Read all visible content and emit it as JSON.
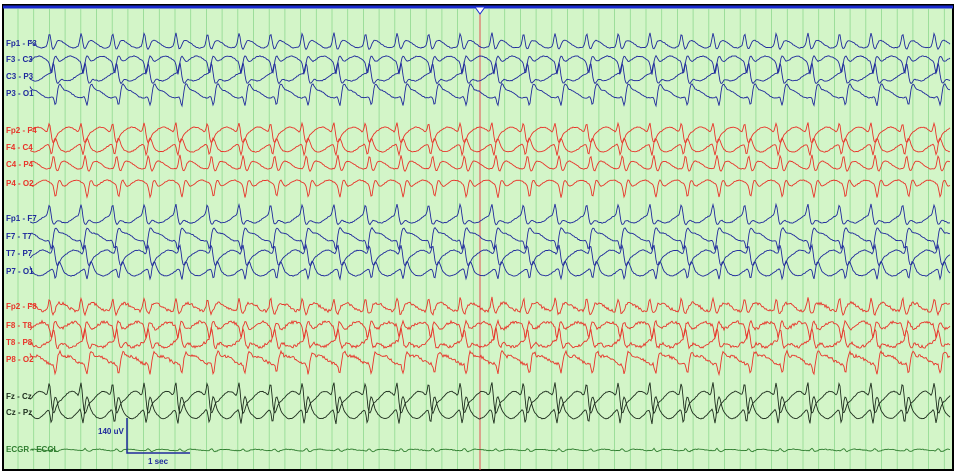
{
  "channels": [
    {
      "label": "Fp1 - F3",
      "color": "#1f2a9c"
    },
    {
      "label": "F3 - C3",
      "color": "#1f2a9c"
    },
    {
      "label": "C3 - P3",
      "color": "#1f2a9c"
    },
    {
      "label": "P3 - O1",
      "color": "#1f2a9c"
    },
    {
      "label": "Fp2 - F4",
      "color": "#e8352a"
    },
    {
      "label": "F4 - C4",
      "color": "#e8352a"
    },
    {
      "label": "C4 - P4",
      "color": "#e8352a"
    },
    {
      "label": "P4 - O2",
      "color": "#e8352a"
    },
    {
      "label": "Fp1 - F7",
      "color": "#1f2a9c"
    },
    {
      "label": "F7 - T7",
      "color": "#1f2a9c"
    },
    {
      "label": "T7 - P7",
      "color": "#1f2a9c"
    },
    {
      "label": "P7 - O1",
      "color": "#1f2a9c"
    },
    {
      "label": "Fp2 - F8",
      "color": "#e8352a"
    },
    {
      "label": "F8 - T8",
      "color": "#e8352a"
    },
    {
      "label": "T8 - P8",
      "color": "#e8352a"
    },
    {
      "label": "P8 - O2",
      "color": "#e8352a"
    },
    {
      "label": "Fz - Cz",
      "color": "#1e2e1e"
    },
    {
      "label": "Cz - Pz",
      "color": "#1e2e1e"
    },
    {
      "label": "ECGR - ECGL",
      "color": "#2f7d2f"
    }
  ],
  "scale": {
    "amplitude": "140 uV",
    "time": "1 sec"
  }
}
